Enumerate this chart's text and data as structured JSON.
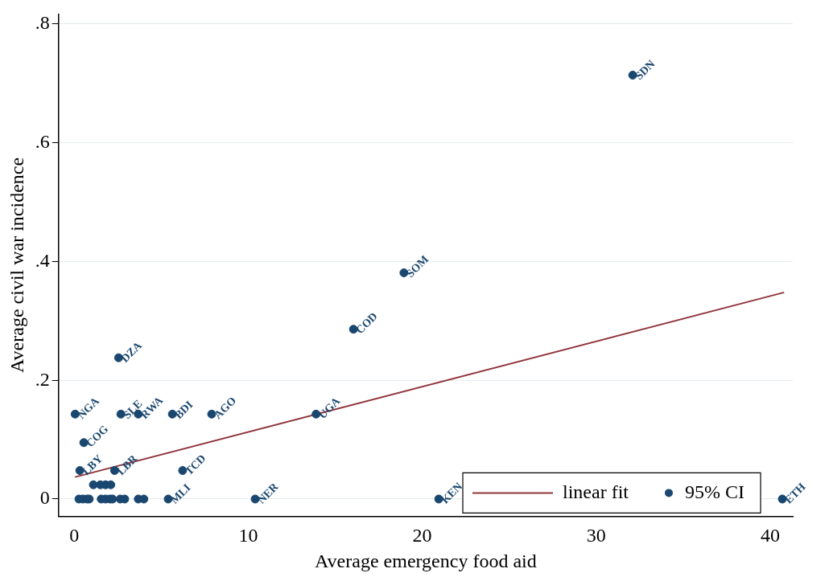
{
  "chart_data": {
    "type": "scatter",
    "xlabel": "Average emergency food aid",
    "ylabel": "Average civil war incidence",
    "xlim": [
      -0.9,
      41.3
    ],
    "ylim": [
      -0.029,
      0.817
    ],
    "xticks": [
      0,
      10,
      20,
      30,
      40
    ],
    "yticks": [
      {
        "value": 0,
        "label": "0"
      },
      {
        "value": 0.2,
        "label": ".2"
      },
      {
        "value": 0.4,
        "label": ".4"
      },
      {
        "value": 0.6,
        "label": ".6"
      },
      {
        "value": 0.8,
        "label": ".8"
      }
    ],
    "grid": "y",
    "legend": "bottom right",
    "series": [
      {
        "name": "linear fit",
        "type": "line",
        "color": "#90353b",
        "x": [
          0.05,
          40.8
        ],
        "values": [
          0.037,
          0.348
        ]
      },
      {
        "name": "95% CI",
        "color": "#1a476f",
        "marker": "circle",
        "x": [
          32.1,
          18.95,
          16.05,
          2.55,
          0.05,
          2.68,
          3.68,
          5.64,
          7.9,
          13.9,
          0.55,
          0.32,
          2.32,
          6.23,
          5.4,
          10.4,
          20.95,
          40.7,
          0.27,
          0.5,
          0.73,
          0.86,
          1.55,
          1.8,
          2.05,
          2.2,
          2.64,
          2.9,
          3.68,
          4.0,
          1.1,
          1.5,
          1.8,
          2.1
        ],
        "values": [
          0.714,
          0.381,
          0.286,
          0.238,
          0.143,
          0.143,
          0.143,
          0.143,
          0.143,
          0.143,
          0.095,
          0.048,
          0.048,
          0.048,
          0,
          0,
          0,
          0,
          0,
          0,
          0,
          0,
          0,
          0,
          0,
          0,
          0,
          0,
          0,
          0,
          0.024,
          0.024,
          0.024,
          0.024
        ],
        "value_labels": [
          "SDN",
          "SOM",
          "COD",
          "DZA",
          "NGA",
          "SLE",
          "RWA",
          "BDI",
          "AGO",
          "UGA",
          "COG",
          "LBY",
          "LBR",
          "TCD",
          "MLI",
          "NER",
          "KEN",
          "ETH",
          null,
          null,
          null,
          null,
          null,
          null,
          null,
          null,
          null,
          null,
          null,
          null,
          null,
          null,
          null,
          null
        ]
      }
    ]
  }
}
